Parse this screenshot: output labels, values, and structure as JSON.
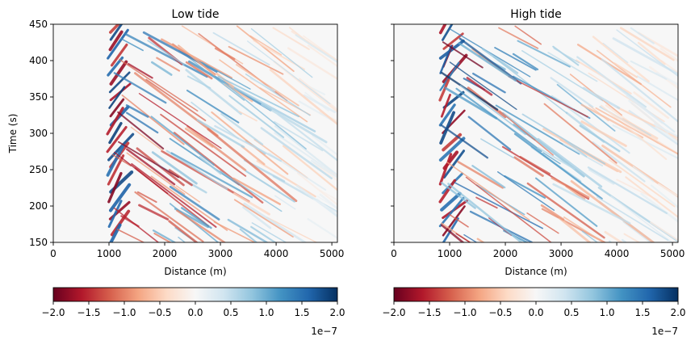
{
  "chart_data": [
    {
      "type": "heatmap",
      "title": "Low tide",
      "xlabel": "Distance (m)",
      "ylabel": "Time (s)",
      "xlim": [
        0,
        5100
      ],
      "ylim": [
        150,
        450
      ],
      "xticks": [
        0,
        1000,
        2000,
        3000,
        4000,
        5000
      ],
      "yticks": [
        150,
        200,
        250,
        300,
        350,
        400,
        450
      ],
      "xtick_labels": [
        "0",
        "1000",
        "2000",
        "3000",
        "4000",
        "5000"
      ],
      "ytick_labels": [
        "150",
        "200",
        "250",
        "300",
        "350",
        "400",
        "450"
      ],
      "signal_onset_m": 1000,
      "colorbar": {
        "colormap": "RdBu",
        "vmin": -2e-07,
        "vmax": 2e-07,
        "ticks": [
          -2.0,
          -1.5,
          -1.0,
          -0.5,
          0.0,
          0.5,
          1.0,
          1.5,
          2.0
        ],
        "tick_labels": [
          "−2.0",
          "−1.5",
          "−1.0",
          "−0.5",
          "0.0",
          "0.5",
          "1.0",
          "1.5",
          "2.0"
        ],
        "offset_text": "1e−7"
      }
    },
    {
      "type": "heatmap",
      "title": "High tide",
      "xlabel": "Distance (m)",
      "ylabel": "",
      "xlim": [
        0,
        5100
      ],
      "ylim": [
        150,
        450
      ],
      "xticks": [
        0,
        1000,
        2000,
        3000,
        4000,
        5000
      ],
      "yticks": [
        150,
        200,
        250,
        300,
        350,
        400,
        450
      ],
      "xtick_labels": [
        "0",
        "1000",
        "2000",
        "3000",
        "4000",
        "5000"
      ],
      "ytick_labels": [],
      "signal_onset_m": 850,
      "colorbar": {
        "colormap": "RdBu",
        "vmin": -2e-07,
        "vmax": 2e-07,
        "ticks": [
          -2.0,
          -1.5,
          -1.0,
          -0.5,
          0.0,
          0.5,
          1.0,
          1.5,
          2.0
        ],
        "tick_labels": [
          "−2.0",
          "−1.5",
          "−1.0",
          "−0.5",
          "0.0",
          "0.5",
          "1.0",
          "1.5",
          "2.0"
        ],
        "offset_text": "1e−7"
      }
    }
  ],
  "colors": {
    "rdbu_stops": [
      "#67001f",
      "#b2182b",
      "#d6604d",
      "#f4a582",
      "#fddbc7",
      "#f7f7f7",
      "#d1e5f0",
      "#92c5de",
      "#4393c3",
      "#2166ac",
      "#053061"
    ],
    "background": "#f7f7f7"
  }
}
